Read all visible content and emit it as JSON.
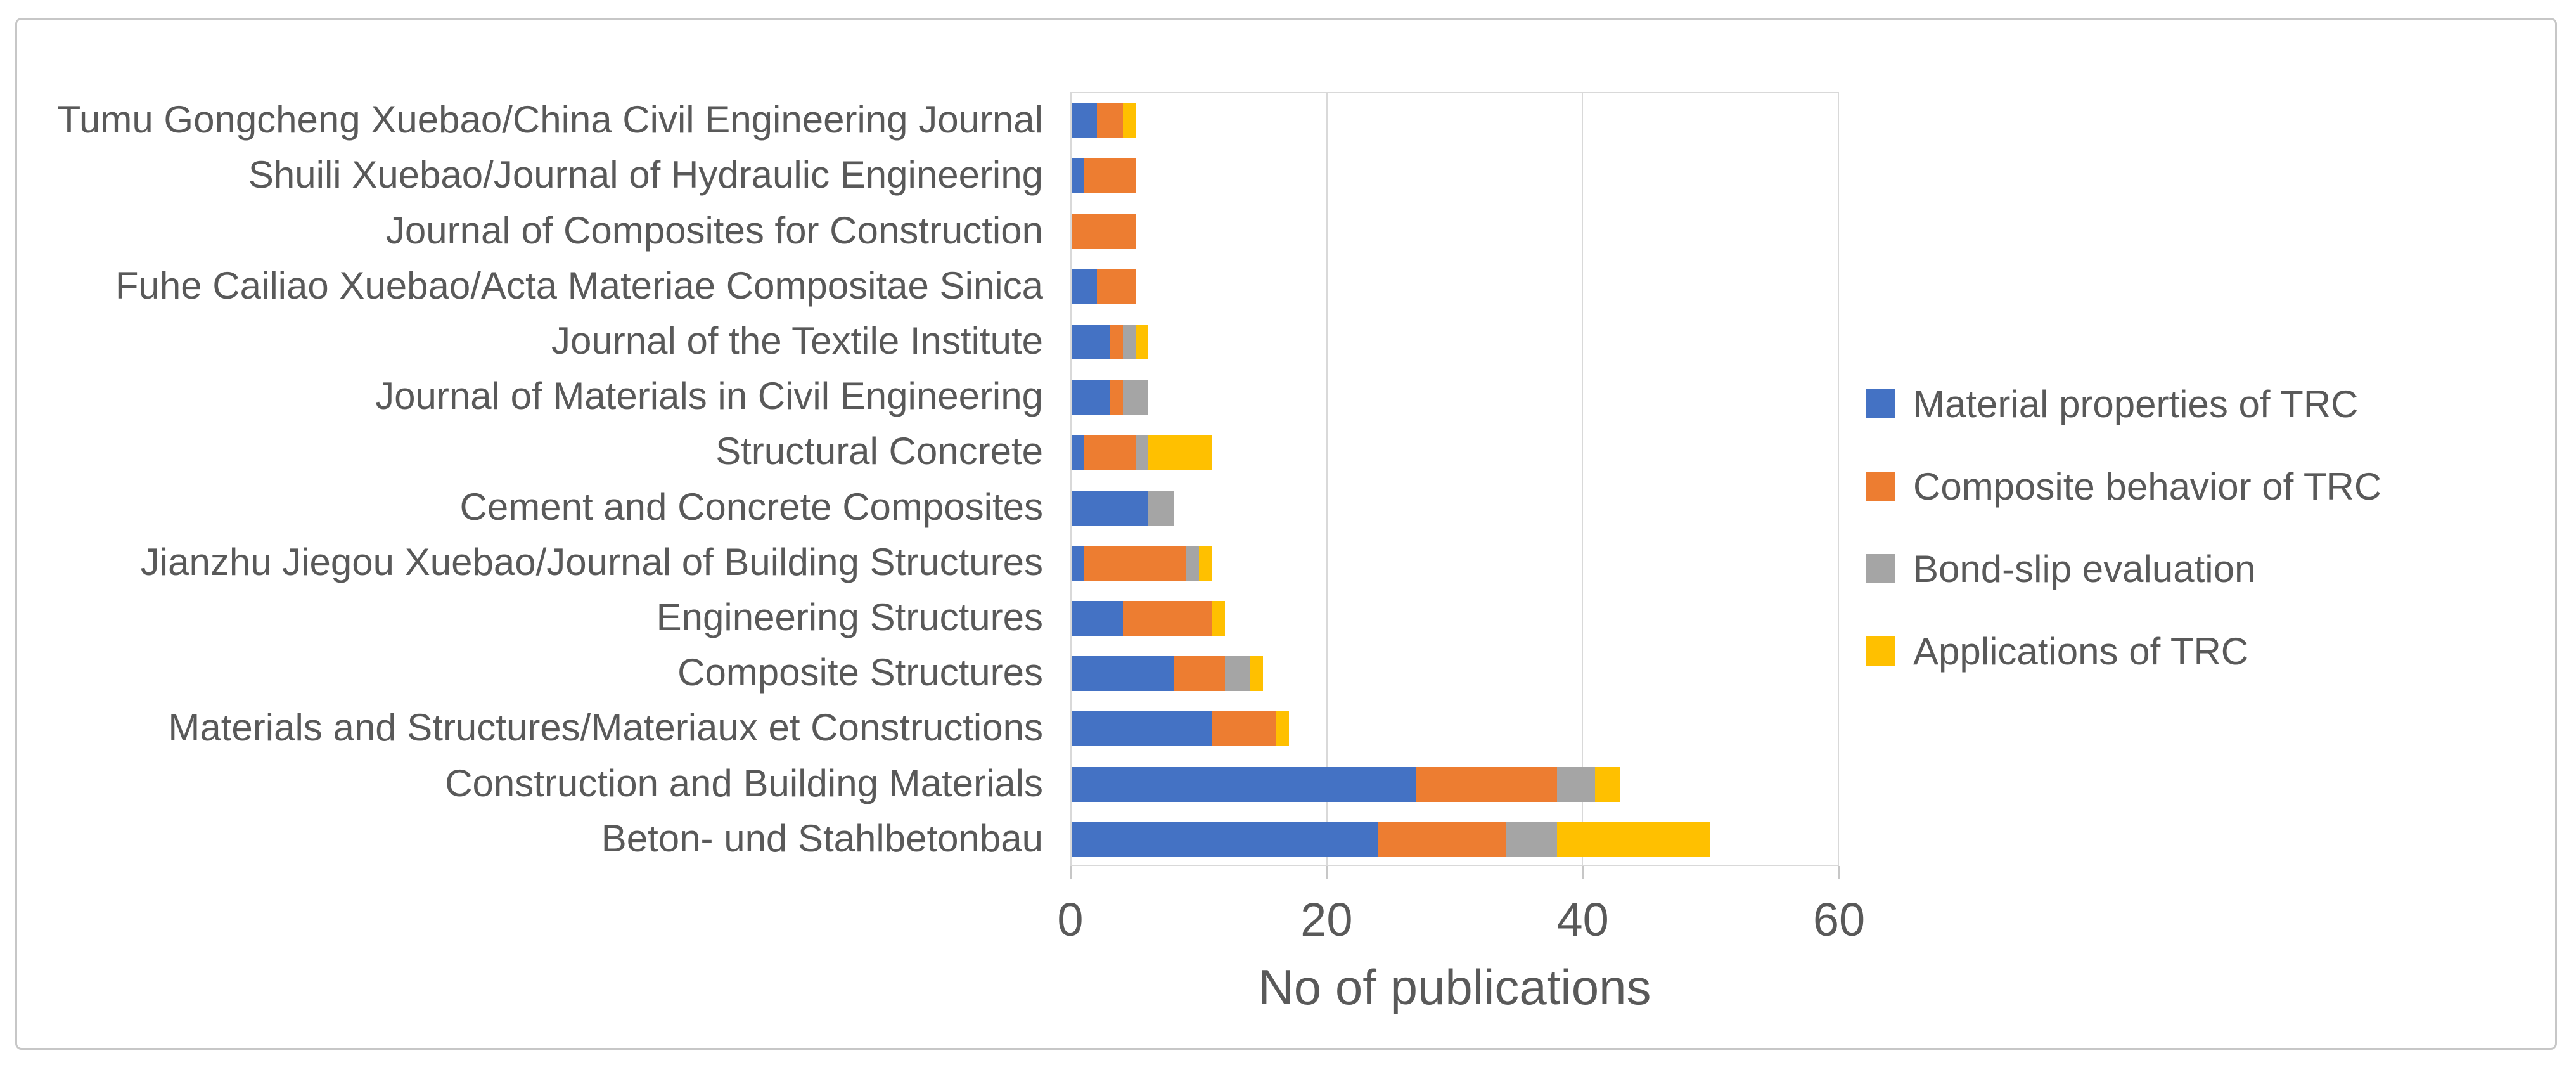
{
  "figure": {
    "background": "#ffffff",
    "border_color": "#c7c7c7",
    "text_color": "#595959",
    "gridline_color": "#d9d9d9"
  },
  "chart_data": {
    "type": "bar",
    "orientation": "horizontal-stacked",
    "title": "",
    "xlabel": "No of publications",
    "ylabel": "",
    "xlim": [
      0,
      60
    ],
    "xticks": [
      0,
      20,
      40,
      60
    ],
    "grid": true,
    "legend_position": "right",
    "categories": [
      "Tumu Gongcheng Xuebao/China Civil Engineering Journal",
      "Shuili Xuebao/Journal of Hydraulic Engineering",
      "Journal of Composites for Construction",
      "Fuhe Cailiao Xuebao/Acta Materiae Compositae Sinica",
      "Journal of the Textile Institute",
      "Journal of Materials in Civil Engineering",
      "Structural Concrete",
      "Cement and Concrete Composites",
      "Jianzhu Jiegou Xuebao/Journal of Building Structures",
      "Engineering Structures",
      "Composite Structures",
      "Materials and Structures/Materiaux et Constructions",
      "Construction and Building Materials",
      "Beton- und Stahlbetonbau"
    ],
    "series": [
      {
        "name": "Material properties of TRC",
        "color": "#4472C4",
        "values": [
          2,
          1,
          0,
          2,
          3,
          3,
          1,
          6,
          1,
          4,
          8,
          11,
          27,
          24
        ]
      },
      {
        "name": "Composite behavior of TRC",
        "color": "#ED7D31",
        "values": [
          2,
          4,
          5,
          3,
          1,
          1,
          4,
          0,
          8,
          7,
          4,
          5,
          11,
          10
        ]
      },
      {
        "name": "Bond-slip evaluation",
        "color": "#A5A5A5",
        "values": [
          0,
          0,
          0,
          0,
          1,
          2,
          1,
          2,
          1,
          0,
          2,
          0,
          3,
          4
        ]
      },
      {
        "name": "Applications of TRC",
        "color": "#FFC000",
        "values": [
          1,
          0,
          0,
          0,
          1,
          0,
          5,
          0,
          1,
          1,
          1,
          1,
          2,
          12
        ]
      }
    ]
  }
}
